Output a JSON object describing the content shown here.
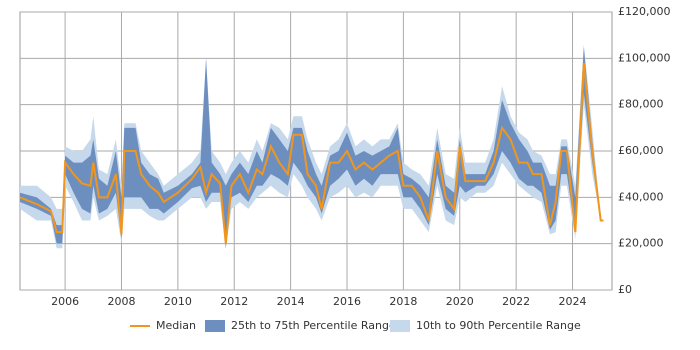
{
  "chart_data": {
    "type": "line",
    "x": [
      2004.4,
      2005.0,
      2005.5,
      2005.7,
      2005.9,
      2006.0,
      2006.3,
      2006.6,
      2006.9,
      2007.0,
      2007.2,
      2007.5,
      2007.8,
      2008.0,
      2008.1,
      2008.5,
      2008.7,
      2009.0,
      2009.3,
      2009.5,
      2010.0,
      2010.5,
      2010.8,
      2011.0,
      2011.2,
      2011.5,
      2011.7,
      2011.9,
      2012.2,
      2012.5,
      2012.8,
      2013.0,
      2013.3,
      2013.6,
      2013.9,
      2014.1,
      2014.4,
      2014.6,
      2014.9,
      2015.1,
      2015.4,
      2015.7,
      2016.0,
      2016.3,
      2016.6,
      2016.9,
      2017.2,
      2017.5,
      2017.8,
      2018.0,
      2018.3,
      2018.6,
      2018.9,
      2019.2,
      2019.5,
      2019.8,
      2020.0,
      2020.2,
      2020.6,
      2020.9,
      2021.2,
      2021.5,
      2021.8,
      2022.1,
      2022.4,
      2022.6,
      2022.9,
      2023.2,
      2023.4,
      2023.6,
      2023.8,
      2024.1,
      2024.4,
      2024.7,
      2025.0,
      2025.1
    ],
    "series": [
      {
        "name": "Median",
        "color": "#f0961e",
        "values": [
          40000,
          37000,
          34000,
          25000,
          25000,
          55000,
          50000,
          46000,
          45000,
          55000,
          40000,
          40000,
          50000,
          24000,
          60000,
          60000,
          50000,
          45000,
          42000,
          38000,
          42000,
          48000,
          53000,
          42000,
          50000,
          46000,
          20000,
          45000,
          50000,
          42000,
          52000,
          50000,
          62000,
          55000,
          50000,
          67000,
          67000,
          50000,
          45000,
          35000,
          55000,
          55000,
          60000,
          52000,
          55000,
          52000,
          55000,
          58000,
          60000,
          45000,
          45000,
          40000,
          30000,
          60000,
          40000,
          35000,
          62000,
          47000,
          47000,
          47000,
          55000,
          70000,
          65000,
          55000,
          55000,
          50000,
          50000,
          28000,
          38000,
          60000,
          60000,
          25000,
          98000,
          60000,
          30000,
          30000
        ]
      },
      {
        "name": "25th to 75th Percentile Range",
        "color": "#6d8fbf",
        "low": [
          38000,
          35000,
          32000,
          20000,
          20000,
          50000,
          42000,
          35000,
          33000,
          45000,
          33000,
          35000,
          42000,
          22000,
          40000,
          40000,
          40000,
          35000,
          35000,
          33000,
          38000,
          44000,
          45000,
          38000,
          42000,
          42000,
          18000,
          40000,
          42000,
          38000,
          45000,
          45000,
          50000,
          48000,
          45000,
          55000,
          50000,
          45000,
          40000,
          33000,
          45000,
          48000,
          52000,
          45000,
          48000,
          45000,
          50000,
          50000,
          50000,
          40000,
          40000,
          35000,
          28000,
          50000,
          35000,
          32000,
          45000,
          42000,
          45000,
          45000,
          50000,
          60000,
          55000,
          48000,
          45000,
          45000,
          42000,
          26000,
          30000,
          50000,
          50000,
          25000,
          85000,
          55000,
          30000,
          30000
        ],
        "high": [
          42000,
          40000,
          35000,
          28000,
          28000,
          58000,
          55000,
          55000,
          58000,
          65000,
          48000,
          45000,
          60000,
          40000,
          70000,
          70000,
          55000,
          50000,
          48000,
          42000,
          45000,
          50000,
          55000,
          100000,
          55000,
          50000,
          45000,
          50000,
          55000,
          50000,
          60000,
          55000,
          70000,
          65000,
          60000,
          70000,
          70000,
          60000,
          50000,
          45000,
          58000,
          60000,
          68000,
          58000,
          60000,
          58000,
          60000,
          62000,
          70000,
          50000,
          48000,
          45000,
          40000,
          65000,
          45000,
          42000,
          65000,
          50000,
          50000,
          50000,
          60000,
          82000,
          72000,
          65000,
          60000,
          55000,
          55000,
          45000,
          45000,
          62000,
          62000,
          40000,
          105000,
          65000,
          30000,
          30000
        ]
      },
      {
        "name": "10th to 90th Percentile Range",
        "color": "#c5d8ec",
        "low": [
          35000,
          30000,
          30000,
          18000,
          18000,
          45000,
          38000,
          30000,
          30000,
          40000,
          30000,
          32000,
          35000,
          20000,
          35000,
          35000,
          35000,
          32000,
          30000,
          30000,
          35000,
          40000,
          40000,
          35000,
          38000,
          38000,
          18000,
          35000,
          38000,
          35000,
          40000,
          42000,
          45000,
          42000,
          40000,
          50000,
          45000,
          40000,
          35000,
          30000,
          40000,
          42000,
          45000,
          40000,
          42000,
          40000,
          45000,
          45000,
          45000,
          35000,
          35000,
          30000,
          25000,
          45000,
          30000,
          28000,
          40000,
          38000,
          42000,
          42000,
          45000,
          55000,
          50000,
          45000,
          42000,
          40000,
          38000,
          24000,
          25000,
          45000,
          45000,
          22000,
          80000,
          50000,
          30000,
          30000
        ],
        "high": [
          45000,
          45000,
          40000,
          35000,
          35000,
          62000,
          60000,
          60000,
          65000,
          75000,
          52000,
          50000,
          65000,
          45000,
          72000,
          72000,
          60000,
          55000,
          50000,
          45000,
          50000,
          55000,
          60000,
          100000,
          60000,
          55000,
          50000,
          55000,
          60000,
          55000,
          65000,
          60000,
          72000,
          70000,
          65000,
          75000,
          75000,
          65000,
          55000,
          50000,
          62000,
          65000,
          72000,
          62000,
          65000,
          62000,
          65000,
          65000,
          72000,
          55000,
          52000,
          50000,
          45000,
          70000,
          50000,
          48000,
          70000,
          55000,
          55000,
          55000,
          65000,
          88000,
          75000,
          68000,
          65000,
          60000,
          58000,
          50000,
          50000,
          65000,
          65000,
          45000,
          106000,
          70000,
          30000,
          30000
        ]
      }
    ],
    "xlim": [
      2004.4,
      2025.4
    ],
    "xticks": [
      2006,
      2008,
      2010,
      2012,
      2014,
      2016,
      2018,
      2020,
      2022,
      2024
    ],
    "ylim": [
      0,
      120000
    ],
    "yticks": [
      {
        "value": 0,
        "label": "£0"
      },
      {
        "value": 20000,
        "label": "£20,000"
      },
      {
        "value": 40000,
        "label": "£40,000"
      },
      {
        "value": 60000,
        "label": "£60,000"
      },
      {
        "value": 80000,
        "label": "£80,000"
      },
      {
        "value": 100000,
        "label": "£100,000"
      },
      {
        "value": 120000,
        "label": "£120,000"
      }
    ],
    "grid": true,
    "legend": "bottom"
  }
}
